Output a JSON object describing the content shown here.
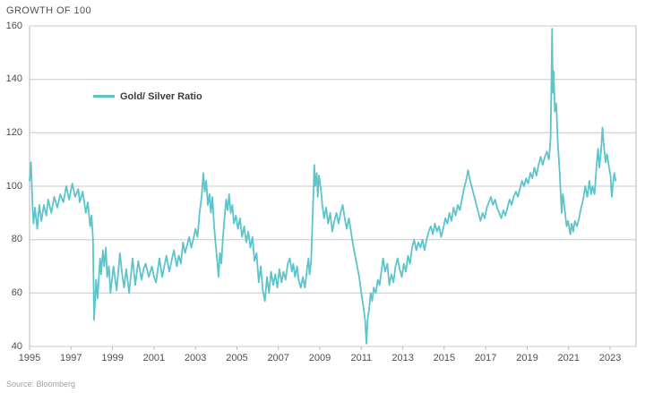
{
  "header": {
    "title": "GROWTH OF 100"
  },
  "legend": {
    "label": "Gold/ Silver Ratio"
  },
  "footer": {
    "source": "Source: Bloomberg"
  },
  "colors": {
    "line": "#5CC4CA",
    "grid": "#C7C8CA",
    "border": "#B9BABC",
    "title": "#4F5052",
    "tick": "#4D4E50",
    "legend_text": "#3B3C3E",
    "source": "#9FA1A4"
  },
  "chart_data": {
    "type": "line",
    "title": "GROWTH OF 100",
    "xlabel": "",
    "ylabel": "",
    "x_domain": [
      1995,
      2024.25
    ],
    "y_domain": [
      40,
      160
    ],
    "x_ticks": [
      1995,
      1997,
      1999,
      2001,
      2003,
      2005,
      2007,
      2009,
      2011,
      2013,
      2015,
      2017,
      2019,
      2021,
      2023
    ],
    "y_ticks": [
      40,
      60,
      80,
      100,
      120,
      140,
      160
    ],
    "grid": "horizontal",
    "legend_position": "top-left-inside",
    "source": "Source: Bloomberg",
    "series": [
      {
        "name": "Gold/ Silver Ratio",
        "color": "#5CC4CA",
        "points": [
          [
            1995.0,
            102
          ],
          [
            1995.07,
            109
          ],
          [
            1995.15,
            91
          ],
          [
            1995.19,
            86
          ],
          [
            1995.26,
            92
          ],
          [
            1995.37,
            84
          ],
          [
            1995.47,
            93
          ],
          [
            1995.57,
            87
          ],
          [
            1995.69,
            93
          ],
          [
            1995.81,
            89
          ],
          [
            1995.9,
            95
          ],
          [
            1996.05,
            90
          ],
          [
            1996.19,
            96
          ],
          [
            1996.34,
            92
          ],
          [
            1996.48,
            97
          ],
          [
            1996.63,
            94
          ],
          [
            1996.77,
            100
          ],
          [
            1996.91,
            95
          ],
          [
            1997.06,
            101
          ],
          [
            1997.2,
            96
          ],
          [
            1997.35,
            99
          ],
          [
            1997.42,
            94
          ],
          [
            1997.56,
            98
          ],
          [
            1997.71,
            90
          ],
          [
            1997.81,
            94
          ],
          [
            1997.92,
            85
          ],
          [
            1997.99,
            89
          ],
          [
            1998.06,
            80
          ],
          [
            1998.11,
            50
          ],
          [
            1998.21,
            65
          ],
          [
            1998.28,
            58
          ],
          [
            1998.4,
            73
          ],
          [
            1998.45,
            67
          ],
          [
            1998.54,
            76
          ],
          [
            1998.6,
            70
          ],
          [
            1998.68,
            77
          ],
          [
            1998.74,
            66
          ],
          [
            1998.83,
            70
          ],
          [
            1998.9,
            60
          ],
          [
            1999.05,
            70
          ],
          [
            1999.2,
            61
          ],
          [
            1999.36,
            75
          ],
          [
            1999.45,
            68
          ],
          [
            1999.56,
            62
          ],
          [
            1999.66,
            69
          ],
          [
            1999.8,
            60
          ],
          [
            1999.97,
            73
          ],
          [
            2000.1,
            63
          ],
          [
            2000.24,
            72
          ],
          [
            2000.4,
            65
          ],
          [
            2000.5,
            69
          ],
          [
            2000.6,
            71
          ],
          [
            2000.75,
            66
          ],
          [
            2000.9,
            70
          ],
          [
            2001.0,
            66
          ],
          [
            2001.1,
            64
          ],
          [
            2001.26,
            73
          ],
          [
            2001.4,
            66
          ],
          [
            2001.5,
            70
          ],
          [
            2001.6,
            74
          ],
          [
            2001.74,
            68
          ],
          [
            2001.85,
            72
          ],
          [
            2001.96,
            76
          ],
          [
            2002.1,
            70
          ],
          [
            2002.2,
            74
          ],
          [
            2002.3,
            71
          ],
          [
            2002.4,
            79
          ],
          [
            2002.5,
            75
          ],
          [
            2002.6,
            78
          ],
          [
            2002.7,
            81
          ],
          [
            2002.8,
            77
          ],
          [
            2002.9,
            80
          ],
          [
            2003.0,
            84
          ],
          [
            2003.1,
            81
          ],
          [
            2003.2,
            90
          ],
          [
            2003.3,
            96
          ],
          [
            2003.38,
            105
          ],
          [
            2003.45,
            98
          ],
          [
            2003.52,
            102
          ],
          [
            2003.6,
            93
          ],
          [
            2003.68,
            97
          ],
          [
            2003.75,
            90
          ],
          [
            2003.82,
            96
          ],
          [
            2003.9,
            85
          ],
          [
            2003.98,
            78
          ],
          [
            2004.05,
            72
          ],
          [
            2004.11,
            66
          ],
          [
            2004.18,
            75
          ],
          [
            2004.25,
            71
          ],
          [
            2004.32,
            80
          ],
          [
            2004.4,
            88
          ],
          [
            2004.48,
            95
          ],
          [
            2004.55,
            91
          ],
          [
            2004.62,
            97
          ],
          [
            2004.7,
            90
          ],
          [
            2004.78,
            93
          ],
          [
            2004.85,
            86
          ],
          [
            2004.95,
            89
          ],
          [
            2005.05,
            84
          ],
          [
            2005.15,
            88
          ],
          [
            2005.25,
            81
          ],
          [
            2005.35,
            85
          ],
          [
            2005.45,
            79
          ],
          [
            2005.55,
            83
          ],
          [
            2005.65,
            77
          ],
          [
            2005.75,
            81
          ],
          [
            2005.85,
            72
          ],
          [
            2005.95,
            75
          ],
          [
            2006.05,
            64
          ],
          [
            2006.15,
            70
          ],
          [
            2006.25,
            61
          ],
          [
            2006.35,
            57
          ],
          [
            2006.45,
            66
          ],
          [
            2006.55,
            60
          ],
          [
            2006.65,
            68
          ],
          [
            2006.75,
            63
          ],
          [
            2006.85,
            67
          ],
          [
            2006.95,
            62
          ],
          [
            2007.05,
            69
          ],
          [
            2007.15,
            64
          ],
          [
            2007.25,
            68
          ],
          [
            2007.35,
            65
          ],
          [
            2007.45,
            71
          ],
          [
            2007.55,
            73
          ],
          [
            2007.65,
            68
          ],
          [
            2007.72,
            71
          ],
          [
            2007.8,
            66
          ],
          [
            2007.9,
            70
          ],
          [
            2007.98,
            65
          ],
          [
            2008.08,
            62
          ],
          [
            2008.18,
            66
          ],
          [
            2008.28,
            62
          ],
          [
            2008.38,
            69
          ],
          [
            2008.45,
            73
          ],
          [
            2008.5,
            67
          ],
          [
            2008.58,
            72
          ],
          [
            2008.64,
            86
          ],
          [
            2008.69,
            97
          ],
          [
            2008.73,
            108
          ],
          [
            2008.78,
            100
          ],
          [
            2008.85,
            105
          ],
          [
            2008.9,
            96
          ],
          [
            2008.96,
            104
          ],
          [
            2009.05,
            99
          ],
          [
            2009.12,
            93
          ],
          [
            2009.2,
            88
          ],
          [
            2009.3,
            92
          ],
          [
            2009.4,
            86
          ],
          [
            2009.5,
            90
          ],
          [
            2009.6,
            83
          ],
          [
            2009.7,
            87
          ],
          [
            2009.8,
            90
          ],
          [
            2009.9,
            86
          ],
          [
            2010.0,
            90
          ],
          [
            2010.1,
            93
          ],
          [
            2010.2,
            88
          ],
          [
            2010.3,
            84
          ],
          [
            2010.4,
            88
          ],
          [
            2010.5,
            83
          ],
          [
            2010.6,
            78
          ],
          [
            2010.7,
            74
          ],
          [
            2010.8,
            70
          ],
          [
            2010.9,
            66
          ],
          [
            2011.0,
            60
          ],
          [
            2011.1,
            55
          ],
          [
            2011.18,
            50
          ],
          [
            2011.25,
            41
          ],
          [
            2011.3,
            50
          ],
          [
            2011.38,
            54
          ],
          [
            2011.45,
            60
          ],
          [
            2011.52,
            57
          ],
          [
            2011.6,
            62
          ],
          [
            2011.7,
            60
          ],
          [
            2011.8,
            65
          ],
          [
            2011.88,
            63
          ],
          [
            2011.95,
            67
          ],
          [
            2012.05,
            73
          ],
          [
            2012.15,
            68
          ],
          [
            2012.25,
            71
          ],
          [
            2012.35,
            63
          ],
          [
            2012.45,
            67
          ],
          [
            2012.55,
            64
          ],
          [
            2012.65,
            70
          ],
          [
            2012.75,
            73
          ],
          [
            2012.85,
            69
          ],
          [
            2012.95,
            66
          ],
          [
            2013.05,
            71
          ],
          [
            2013.15,
            68
          ],
          [
            2013.25,
            74
          ],
          [
            2013.35,
            71
          ],
          [
            2013.45,
            77
          ],
          [
            2013.55,
            80
          ],
          [
            2013.65,
            76
          ],
          [
            2013.75,
            79
          ],
          [
            2013.85,
            77
          ],
          [
            2013.95,
            80
          ],
          [
            2014.05,
            76
          ],
          [
            2014.15,
            80
          ],
          [
            2014.25,
            83
          ],
          [
            2014.35,
            85
          ],
          [
            2014.45,
            82
          ],
          [
            2014.55,
            86
          ],
          [
            2014.65,
            83
          ],
          [
            2014.75,
            85
          ],
          [
            2014.85,
            81
          ],
          [
            2014.95,
            84
          ],
          [
            2015.05,
            88
          ],
          [
            2015.15,
            86
          ],
          [
            2015.25,
            90
          ],
          [
            2015.35,
            87
          ],
          [
            2015.45,
            92
          ],
          [
            2015.55,
            89
          ],
          [
            2015.65,
            93
          ],
          [
            2015.75,
            91
          ],
          [
            2015.85,
            95
          ],
          [
            2015.95,
            99
          ],
          [
            2016.05,
            102
          ],
          [
            2016.15,
            106
          ],
          [
            2016.25,
            102
          ],
          [
            2016.35,
            99
          ],
          [
            2016.45,
            96
          ],
          [
            2016.55,
            93
          ],
          [
            2016.65,
            90
          ],
          [
            2016.75,
            87
          ],
          [
            2016.85,
            90
          ],
          [
            2016.95,
            88
          ],
          [
            2017.05,
            92
          ],
          [
            2017.15,
            94
          ],
          [
            2017.25,
            96
          ],
          [
            2017.35,
            93
          ],
          [
            2017.45,
            95
          ],
          [
            2017.55,
            92
          ],
          [
            2017.65,
            90
          ],
          [
            2017.75,
            88
          ],
          [
            2017.85,
            91
          ],
          [
            2017.95,
            89
          ],
          [
            2018.05,
            92
          ],
          [
            2018.15,
            95
          ],
          [
            2018.25,
            93
          ],
          [
            2018.35,
            96
          ],
          [
            2018.45,
            98
          ],
          [
            2018.55,
            96
          ],
          [
            2018.65,
            99
          ],
          [
            2018.75,
            102
          ],
          [
            2018.85,
            100
          ],
          [
            2018.95,
            103
          ],
          [
            2019.05,
            101
          ],
          [
            2019.15,
            105
          ],
          [
            2019.25,
            103
          ],
          [
            2019.35,
            107
          ],
          [
            2019.45,
            104
          ],
          [
            2019.55,
            108
          ],
          [
            2019.65,
            111
          ],
          [
            2019.75,
            108
          ],
          [
            2019.85,
            111
          ],
          [
            2019.95,
            113
          ],
          [
            2020.05,
            110
          ],
          [
            2020.13,
            118
          ],
          [
            2020.17,
            140
          ],
          [
            2020.2,
            159
          ],
          [
            2020.24,
            135
          ],
          [
            2020.28,
            143
          ],
          [
            2020.33,
            128
          ],
          [
            2020.4,
            131
          ],
          [
            2020.48,
            116
          ],
          [
            2020.57,
            105
          ],
          [
            2020.66,
            90
          ],
          [
            2020.72,
            97
          ],
          [
            2020.8,
            92
          ],
          [
            2020.9,
            85
          ],
          [
            2020.97,
            87
          ],
          [
            2021.08,
            82
          ],
          [
            2021.15,
            86
          ],
          [
            2021.22,
            83
          ],
          [
            2021.3,
            87
          ],
          [
            2021.4,
            85
          ],
          [
            2021.5,
            88
          ],
          [
            2021.6,
            92
          ],
          [
            2021.7,
            95
          ],
          [
            2021.8,
            100
          ],
          [
            2021.9,
            96
          ],
          [
            2022.0,
            102
          ],
          [
            2022.08,
            97
          ],
          [
            2022.15,
            100
          ],
          [
            2022.25,
            97
          ],
          [
            2022.35,
            108
          ],
          [
            2022.42,
            114
          ],
          [
            2022.48,
            107
          ],
          [
            2022.56,
            113
          ],
          [
            2022.63,
            122
          ],
          [
            2022.7,
            115
          ],
          [
            2022.78,
            109
          ],
          [
            2022.85,
            112
          ],
          [
            2022.95,
            107
          ],
          [
            2023.02,
            104
          ],
          [
            2023.08,
            96
          ],
          [
            2023.14,
            101
          ],
          [
            2023.2,
            105
          ],
          [
            2023.27,
            102
          ]
        ]
      }
    ]
  }
}
